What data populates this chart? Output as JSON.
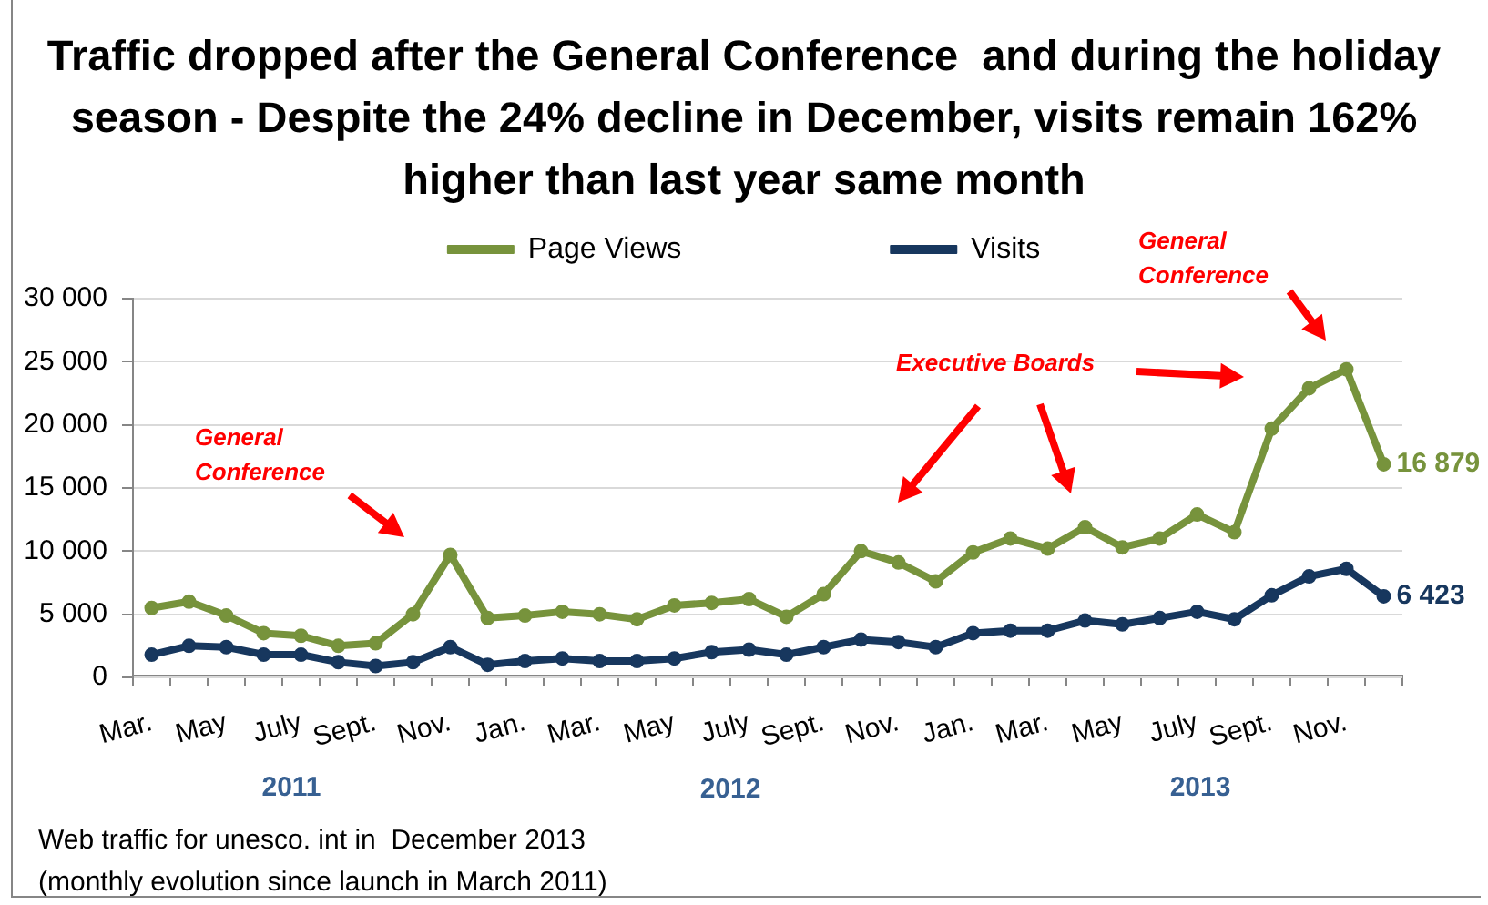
{
  "chart_data": {
    "type": "line",
    "title": "Traffic dropped after the General Conference  and during the holiday\nseason - Despite the 24% decline in December, visits remain 162%\nhigher than last year same month",
    "categories": [
      "Mar.",
      null,
      "May",
      null,
      "July",
      null,
      "Sept.",
      null,
      "Nov.",
      null,
      "Jan.",
      null,
      "Mar.",
      null,
      "May",
      null,
      "July",
      null,
      "Sept.",
      null,
      "Nov.",
      null,
      "Jan.",
      null,
      "Mar.",
      null,
      "May",
      null,
      "July",
      null,
      "Sept.",
      null,
      "Nov.",
      null
    ],
    "series": [
      {
        "name": "Page Views",
        "color": "#77933c",
        "values": [
          5500,
          6000,
          4900,
          3500,
          3300,
          2500,
          2700,
          5000,
          9700,
          4700,
          4900,
          5200,
          5000,
          4600,
          5700,
          5900,
          6200,
          4800,
          6600,
          10000,
          9100,
          7600,
          9900,
          11000,
          10200,
          11900,
          10300,
          11000,
          12900,
          11500,
          19700,
          22900,
          24400,
          16879
        ],
        "value_labels": [
          null,
          null,
          null,
          null,
          null,
          null,
          null,
          null,
          null,
          null,
          null,
          null,
          null,
          null,
          null,
          null,
          null,
          null,
          null,
          null,
          null,
          null,
          null,
          null,
          null,
          null,
          null,
          null,
          null,
          null,
          null,
          null,
          null,
          "16 879"
        ]
      },
      {
        "name": "Visits",
        "color": "#17375e",
        "values": [
          1800,
          2500,
          2400,
          1800,
          1800,
          1200,
          900,
          1200,
          2400,
          1000,
          1300,
          1500,
          1300,
          1300,
          1500,
          2000,
          2200,
          1800,
          2400,
          3000,
          2800,
          2400,
          3500,
          3700,
          3700,
          4500,
          4200,
          4700,
          5200,
          4600,
          6500,
          8000,
          8600,
          6423
        ],
        "value_labels": [
          null,
          null,
          null,
          null,
          null,
          null,
          null,
          null,
          null,
          null,
          null,
          null,
          null,
          null,
          null,
          null,
          null,
          null,
          null,
          null,
          null,
          null,
          null,
          null,
          null,
          null,
          null,
          null,
          null,
          null,
          null,
          null,
          null,
          "6 423"
        ]
      }
    ],
    "ylim": [
      0,
      30000
    ],
    "yticks": [
      0,
      {
        "value": 5000,
        "label": "5 000"
      },
      {
        "value": 10000,
        "label": "10 000"
      },
      {
        "value": 15000,
        "label": "15 000"
      },
      {
        "value": 20000,
        "label": "20 000"
      },
      {
        "value": 25000,
        "label": "25 000"
      },
      {
        "value": 30000,
        "label": "30 000"
      }
    ],
    "grid": "y",
    "legend": "top",
    "marker": "circle",
    "line_style": "solid",
    "annotations": [
      "General\nConference",
      "Executive Boards",
      "General\nConference",
      "2011",
      "2012",
      "2013",
      "Web traffic for unesco. int in  December 2013\n(monthly evolution since launch in March 2011)"
    ]
  }
}
